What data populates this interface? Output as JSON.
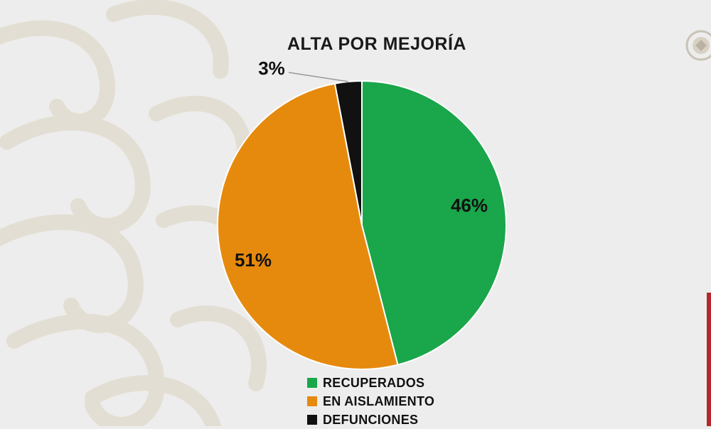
{
  "colors": {
    "recuperados": "#1aa64a",
    "en_aislamiento": "#e68a0e",
    "defunciones": "#111111",
    "background": "#ededed",
    "pattern": "#e2dcd0"
  },
  "chart_data": {
    "type": "pie",
    "title": "ALTA POR MEJORÍA",
    "slices": [
      {
        "name": "RECUPERADOS",
        "value": 46,
        "label": "46%",
        "color": "#1aa64a"
      },
      {
        "name": "EN AISLAMIENTO",
        "value": 51,
        "label": "51%",
        "color": "#e68a0e"
      },
      {
        "name": "DEFUNCIONES",
        "value": 3,
        "label": "3%",
        "color": "#111111"
      }
    ],
    "legend_placement": "bottom"
  },
  "legend": {
    "items": [
      {
        "label": "RECUPERADOS",
        "color": "#1aa64a"
      },
      {
        "label": "EN AISLAMIENTO",
        "color": "#e68a0e"
      },
      {
        "label": "DEFUNCIONES",
        "color": "#111111"
      }
    ]
  },
  "decor": {
    "seal_icon": "coat-of-arms-seal-icon",
    "background_icon": "ornamental-pattern-icon"
  }
}
